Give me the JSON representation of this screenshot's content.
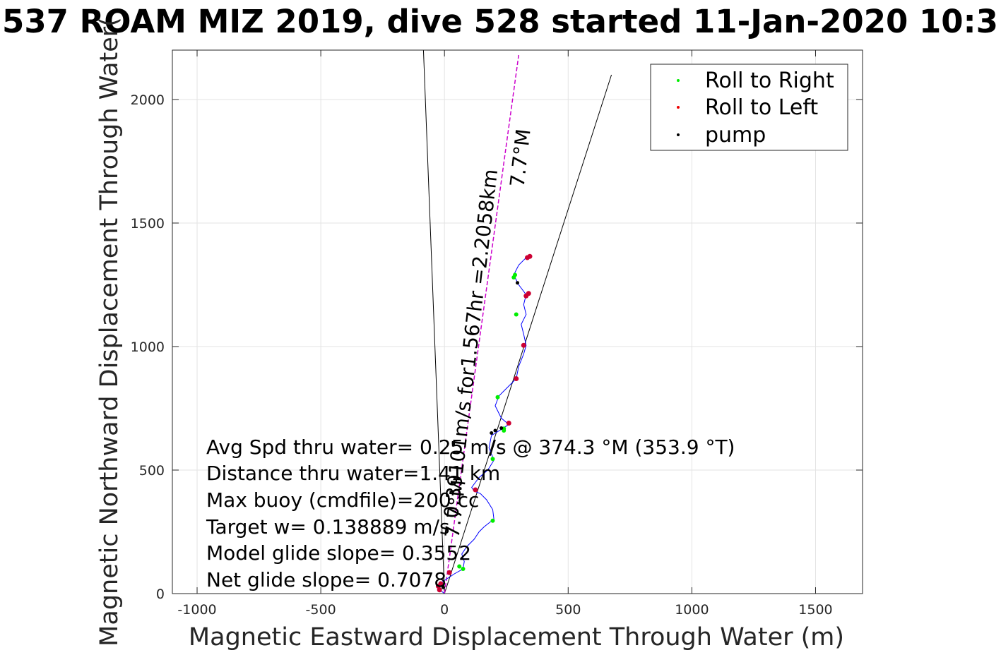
{
  "chart_data": {
    "type": "line",
    "title": "537 ROAM MIZ 2019, dive 528 started 11-Jan-2020 10:3",
    "xlabel": "Magnetic Eastward Displacement Through Water (m)",
    "ylabel": "Magnetic Northward Displacement Through Water(",
    "xlim": [
      -1100,
      1690
    ],
    "ylim": [
      0,
      2200
    ],
    "xticks": [
      -1000,
      -500,
      0,
      500,
      1000,
      1500
    ],
    "yticks": [
      0,
      500,
      1000,
      1500,
      2000
    ],
    "grid": true,
    "legend_position": "top-right",
    "legend": [
      {
        "label": "Roll to Right",
        "color": "#00ee00"
      },
      {
        "label": "Roll to Left",
        "color": "#ee0000"
      },
      {
        "label": "pump",
        "color": "#000000"
      }
    ],
    "track": [
      [
        0,
        0
      ],
      [
        -25,
        20
      ],
      [
        -20,
        40
      ],
      [
        10,
        60
      ],
      [
        40,
        80
      ],
      [
        75,
        100
      ],
      [
        80,
        130
      ],
      [
        70,
        160
      ],
      [
        90,
        190
      ],
      [
        120,
        220
      ],
      [
        140,
        250
      ],
      [
        160,
        270
      ],
      [
        185,
        290
      ],
      [
        200,
        300
      ],
      [
        195,
        340
      ],
      [
        170,
        380
      ],
      [
        145,
        405
      ],
      [
        120,
        415
      ],
      [
        110,
        430
      ],
      [
        140,
        470
      ],
      [
        175,
        500
      ],
      [
        200,
        540
      ],
      [
        180,
        590
      ],
      [
        190,
        640
      ],
      [
        230,
        665
      ],
      [
        260,
        685
      ],
      [
        230,
        710
      ],
      [
        205,
        760
      ],
      [
        220,
        800
      ],
      [
        260,
        840
      ],
      [
        290,
        870
      ],
      [
        300,
        920
      ],
      [
        320,
        970
      ],
      [
        330,
        1005
      ],
      [
        320,
        1050
      ],
      [
        310,
        1090
      ],
      [
        330,
        1130
      ],
      [
        320,
        1170
      ],
      [
        330,
        1210
      ],
      [
        300,
        1250
      ],
      [
        280,
        1290
      ],
      [
        300,
        1330
      ],
      [
        330,
        1360
      ],
      [
        350,
        1370
      ]
    ],
    "roll_right_points": [
      [
        75,
        100
      ],
      [
        195,
        295
      ],
      [
        195,
        545
      ],
      [
        240,
        660
      ],
      [
        240,
        668
      ],
      [
        215,
        795
      ],
      [
        290,
        1130
      ],
      [
        285,
        1290
      ],
      [
        280,
        1280
      ],
      [
        60,
        110
      ]
    ],
    "roll_left_points": [
      [
        -25,
        30
      ],
      [
        -20,
        15
      ],
      [
        -15,
        40
      ],
      [
        125,
        420
      ],
      [
        320,
        1005
      ],
      [
        290,
        870
      ],
      [
        330,
        1205
      ],
      [
        340,
        1215
      ],
      [
        345,
        1365
      ],
      [
        335,
        1360
      ],
      [
        260,
        690
      ],
      [
        20,
        85
      ]
    ],
    "pump_points": [
      [
        295,
        1258
      ],
      [
        230,
        670
      ],
      [
        205,
        660
      ],
      [
        190,
        650
      ],
      [
        -5,
        25
      ]
    ],
    "reference_lines": [
      {
        "name": "heading-line",
        "color": "#000000",
        "points": [
          [
            0,
            0
          ],
          [
            675,
            2100
          ]
        ]
      },
      {
        "name": "current-line",
        "color": "#000000",
        "points": [
          [
            0,
            0
          ],
          [
            -85,
            2200
          ]
        ]
      },
      {
        "name": "vector-line",
        "color": "#cc00cc",
        "points": [
          [
            0,
            0
          ],
          [
            300,
            2180
          ]
        ]
      }
    ],
    "rotated_labels": {
      "current_speed": "0.39101m/s for1.567hr =2.2058km",
      "heading_deg": "7.7°M",
      "heading_deg_small": "7.7°M"
    },
    "annotations": [
      "Avg Spd thru water= 0.25 m/s @ 374.3 °M (353.9 °T)",
      "Distance thru water=1.41 km",
      "Max buoy (cmdfile)=200 cc",
      "Target w= 0.138889 m/s",
      "Model glide slope= 0.3552",
      "Net glide slope= 0.7078"
    ]
  }
}
